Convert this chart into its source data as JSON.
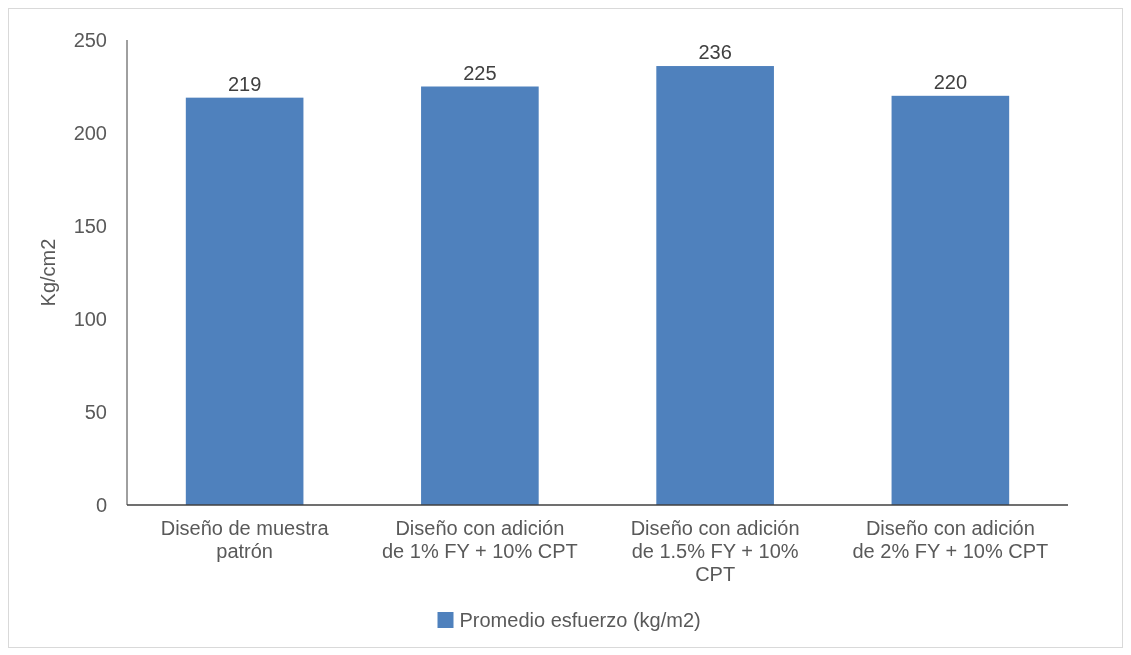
{
  "chart_data": {
    "type": "bar",
    "ylabel": "Kg/cm2",
    "categories": [
      "Diseño de muestra patrón",
      "Diseño con adición de 1% FY + 10% CPT",
      "Diseño con adición de 1.5% FY + 10% CPT",
      "Diseño con adición de 2% FY + 10% CPT"
    ],
    "series": [
      {
        "name": "Promedio esfuerzo (kg/m2)",
        "color": "#4f81bd",
        "values": [
          219,
          225,
          236,
          220
        ]
      }
    ],
    "ylim": [
      0,
      250
    ],
    "yticks": [
      0,
      50,
      100,
      150,
      200,
      250
    ],
    "data_labels": true,
    "grid": false,
    "legend": "bottom"
  }
}
